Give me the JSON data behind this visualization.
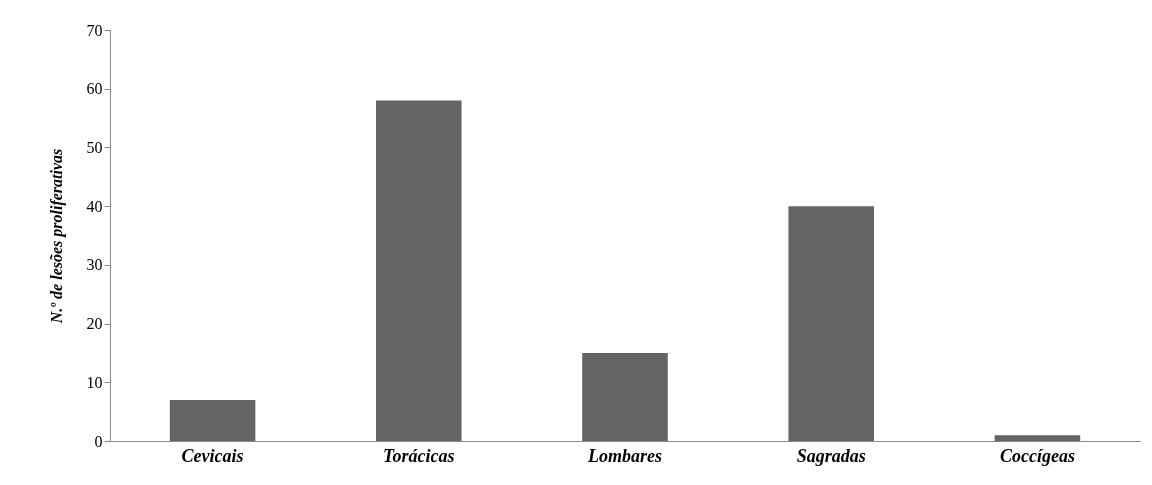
{
  "chart_data": {
    "type": "bar",
    "ylabel": "N.º de lesões proliferativas",
    "categories": [
      "Cevicais",
      "Torácicas",
      "Lombares",
      "Sagradas",
      "Coccígeas"
    ],
    "values": [
      7,
      58,
      15,
      40,
      1
    ],
    "color": "#646464",
    "ylim": [
      0,
      70
    ],
    "yticks": [
      0,
      10,
      20,
      30,
      40,
      50,
      60,
      70
    ],
    "grid": false
  }
}
